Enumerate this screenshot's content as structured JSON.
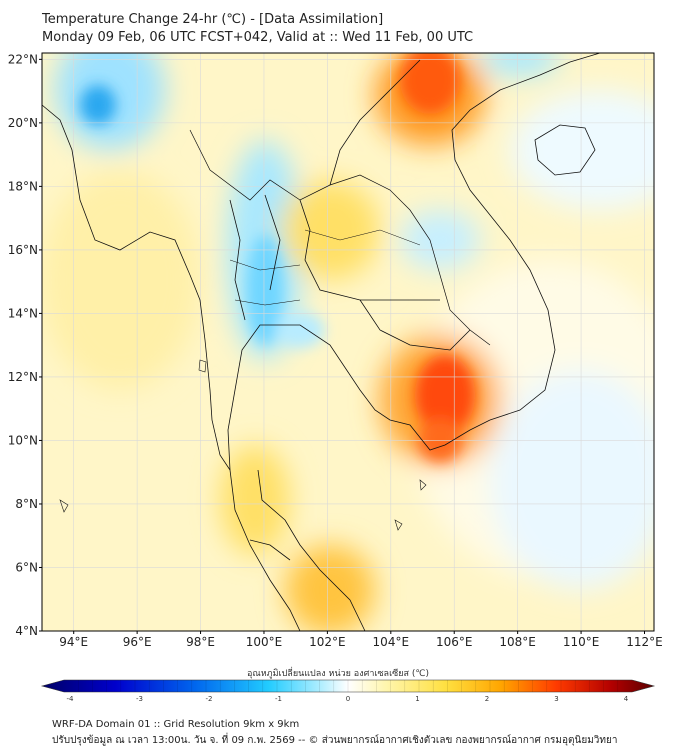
{
  "title_line1": "Temperature Change 24-hr (℃) - [Data Assimilation]",
  "title_line2": "Monday 09 Feb, 06 UTC FCST+042, Valid at :: Wed 11 Feb, 00 UTC",
  "lat_labels": [
    "22°N",
    "20°N",
    "18°N",
    "16°N",
    "14°N",
    "12°N",
    "10°N",
    "8°N",
    "6°N",
    "4°N"
  ],
  "lat_values": [
    22,
    20,
    18,
    16,
    14,
    12,
    10,
    8,
    6,
    4
  ],
  "lon_labels": [
    "94°E",
    "96°E",
    "98°E",
    "100°E",
    "102°E",
    "104°E",
    "106°E",
    "108°E",
    "110°E",
    "112°E"
  ],
  "lon_values": [
    94,
    96,
    98,
    100,
    102,
    104,
    106,
    108,
    110,
    112
  ],
  "map_extent": {
    "lon_min": 93,
    "lon_max": 112.3,
    "lat_min": 4,
    "lat_max": 22.2
  },
  "colorbar": {
    "title": "อุณหภูมิเปลี่ยนแปลง หน่วย องศาเซลเซียส (℃)",
    "min": -4,
    "max": 4,
    "ticks": [
      "-4",
      "-3",
      "-2",
      "-1",
      "0",
      "1",
      "2",
      "3",
      "4"
    ],
    "colors": [
      "#000066",
      "#0000cc",
      "#0055ee",
      "#00aaff",
      "#66ddff",
      "#ffffff",
      "#fff3a0",
      "#ffd23c",
      "#ff9a00",
      "#ff3b00",
      "#b30000",
      "#5a0000"
    ]
  },
  "footer_line1": "WRF-DA Domain 01 :: Grid Resolution 9km x 9km",
  "footer_line2": "ปรับปรุงข้อมูล ณ เวลา 13:00น. วัน จ. ที่ 09 ก.พ. 2569 -- © ส่วนพยากรณ์อากาศเชิงตัวเลข กองพยากรณ์อากาศ กรมอุตุนิยมวิทยา"
}
